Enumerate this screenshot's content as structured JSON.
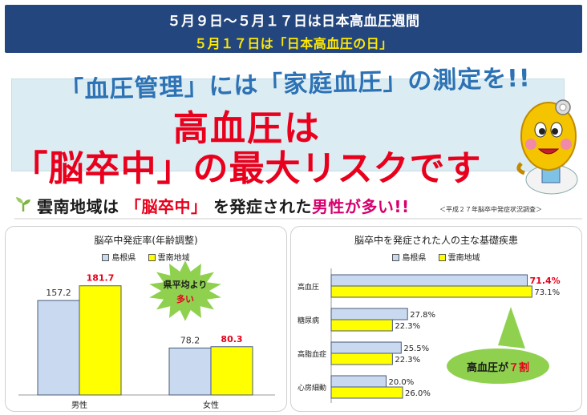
{
  "banner": {
    "line1": "５月９日〜５月１７日は日本高血圧週間",
    "line2": "５月１７日は「日本高血圧の日」"
  },
  "headline": {
    "catch": "「血圧管理」には「家庭血圧」の測定を!!",
    "main1": "高血圧は",
    "main2": "「脳卒中」の最大リスクです"
  },
  "section": {
    "t1": "雲南地域は",
    "t2": "「脳卒中」",
    "t3": "を発症された",
    "t4": "男性が多い!!",
    "source": "＜平成２７年脳卒中発症状況調査＞"
  },
  "chart_data": [
    {
      "type": "bar",
      "title": "脳卒中発症率(年齢調整)",
      "categories": [
        "男性",
        "女性"
      ],
      "series": [
        {
          "name": "島根県",
          "values": [
            157.2,
            78.2
          ]
        },
        {
          "name": "雲南地域",
          "values": [
            181.7,
            80.3
          ]
        }
      ],
      "ylim": [
        0,
        200
      ],
      "callout": {
        "line1": "県平均より",
        "line2": "多い"
      },
      "colors": {
        "島根県": "#c9d9ef",
        "雲南地域": "#ffff00",
        "highlight": "#e8001c"
      }
    },
    {
      "type": "bar",
      "orientation": "horizontal",
      "title": "脳卒中を発症された人の主な基礎疾患",
      "categories": [
        "高血圧",
        "糖尿病",
        "高脂血症",
        "心房細動"
      ],
      "series": [
        {
          "name": "島根県",
          "values": [
            71.4,
            27.8,
            25.5,
            20.0
          ]
        },
        {
          "name": "雲南地域",
          "values": [
            73.1,
            22.3,
            22.3,
            26.0
          ]
        }
      ],
      "value_labels": {
        "島根県": [
          "71.4%",
          "27.8%",
          "25.5%",
          "20.0%"
        ],
        "雲南地域": [
          "73.1%",
          "22.3%",
          "22.3%",
          "26.0%"
        ]
      },
      "xlim": [
        0,
        80
      ],
      "callout": {
        "text1": "高血圧が",
        "text2": "７割"
      },
      "colors": {
        "島根県": "#c9d9ef",
        "雲南地域": "#ffff00",
        "highlight": "#e8001c",
        "callout": "#8fd14f"
      }
    }
  ]
}
